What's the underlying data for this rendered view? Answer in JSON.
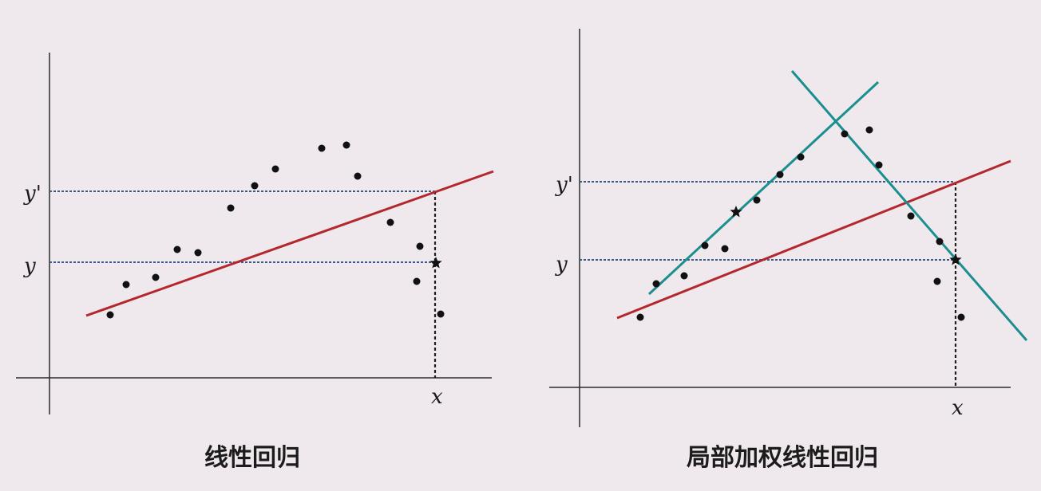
{
  "colors": {
    "background": "#efe9ed",
    "axis": "#2a2a2a",
    "reference": "#3b5a8c",
    "drop": "#1f1f1f",
    "fit": "#b3282d",
    "local": "#1b8f8f",
    "point": "#111111"
  },
  "left_panel": {
    "caption": "线性回归",
    "labels": {
      "y_prime": "y'",
      "y": "y",
      "x": "x"
    },
    "points": [
      [
        138,
        395
      ],
      [
        158,
        357
      ],
      [
        195,
        348
      ],
      [
        222,
        313
      ],
      [
        248,
        317
      ],
      [
        289,
        261
      ],
      [
        319,
        233
      ],
      [
        345,
        212
      ],
      [
        403,
        186
      ],
      [
        434,
        182
      ],
      [
        448,
        221
      ],
      [
        489,
        279
      ],
      [
        526,
        309
      ],
      [
        522,
        353
      ],
      [
        552,
        394
      ]
    ],
    "star": [
      546,
      330
    ]
  },
  "right_panel": {
    "caption": "局部加权线性回归",
    "labels": {
      "y_prime": "y'",
      "y": "y",
      "x": "x"
    },
    "points": [
      [
        802,
        398
      ],
      [
        822,
        356
      ],
      [
        857,
        346
      ],
      [
        883,
        308
      ],
      [
        908,
        312
      ],
      [
        948,
        251
      ],
      [
        977,
        219
      ],
      [
        1003,
        197
      ],
      [
        1058,
        168
      ],
      [
        1089,
        163
      ],
      [
        1101,
        207
      ],
      [
        1141,
        271
      ],
      [
        1177,
        303
      ],
      [
        1174,
        353
      ],
      [
        1204,
        398
      ]
    ],
    "star_points": [
      [
        922,
        266
      ],
      [
        1197,
        326
      ]
    ]
  }
}
